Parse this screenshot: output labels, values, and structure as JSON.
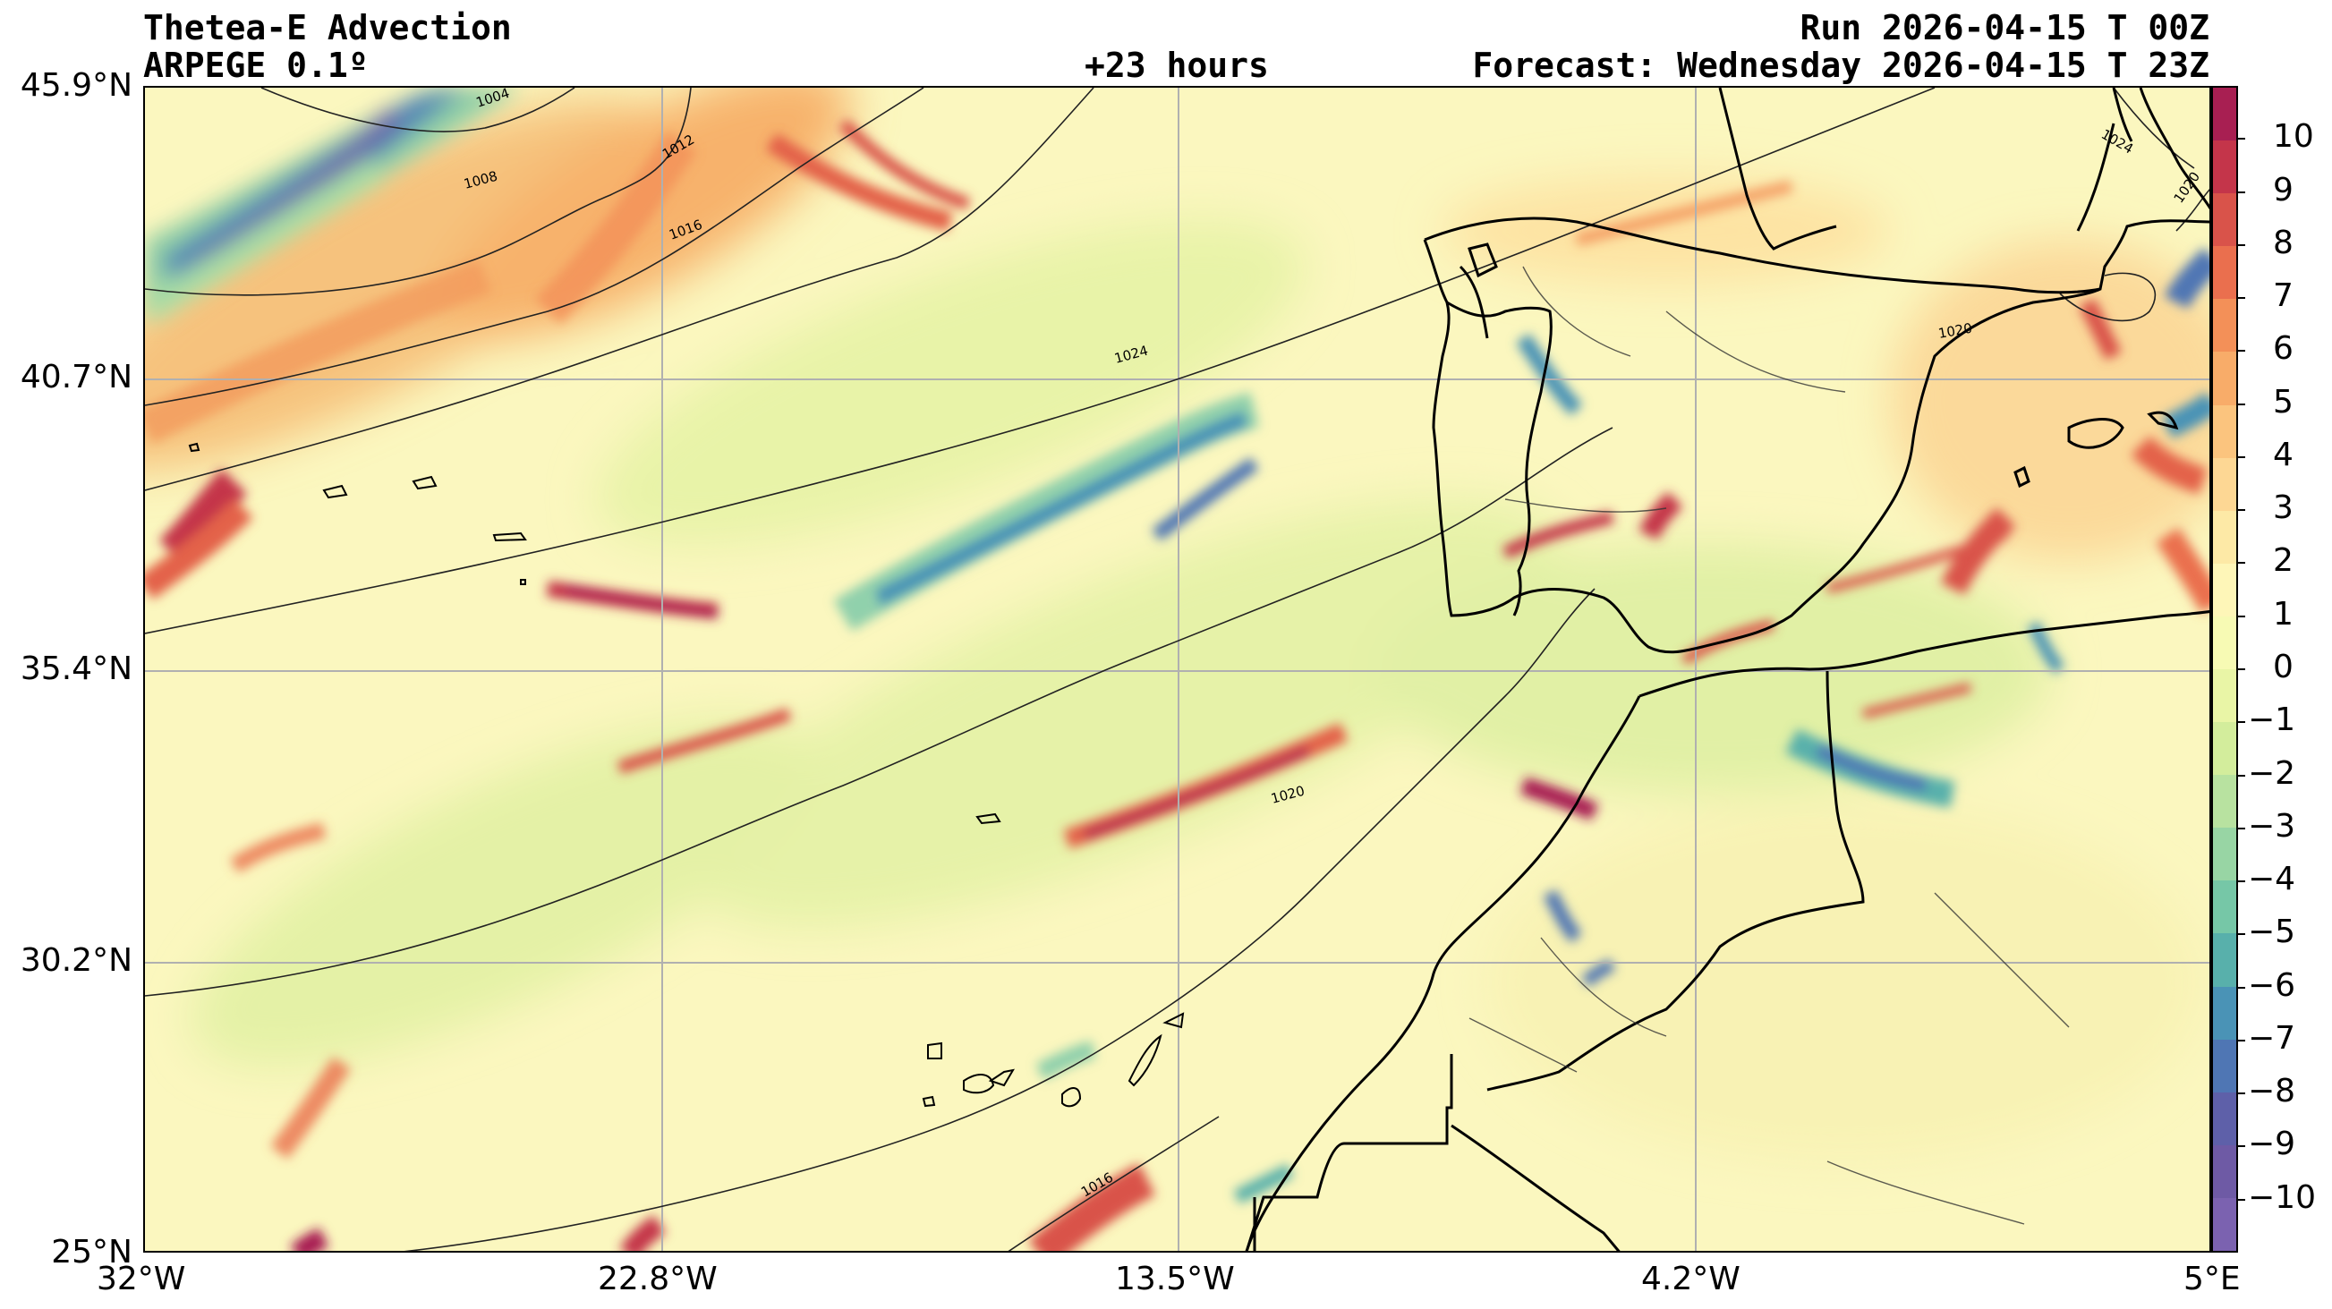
{
  "header": {
    "title_line1": "Thetea-E Advection",
    "title_line2": "ARPEGE 0.1º",
    "lead_time": "+23 hours",
    "run": "Run 2026-04-15 T 00Z",
    "forecast": "Forecast: Wednesday 2026-04-15 T 23Z"
  },
  "axes": {
    "lat_labels": [
      "45.9°N",
      "40.7°N",
      "35.4°N",
      "30.2°N",
      "25°N"
    ],
    "lon_labels": [
      "32°W",
      "22.8°W",
      "13.5°W",
      "4.2°W",
      "5°E"
    ]
  },
  "isobars": [
    "1004",
    "1008",
    "1012",
    "1016",
    "1024",
    "1020",
    "1016",
    "1024",
    "1020",
    "1020"
  ],
  "colorbar": {
    "ticks": [
      "10",
      "9",
      "8",
      "7",
      "6",
      "5",
      "4",
      "3",
      "2",
      "1",
      "0",
      "−1",
      "−2",
      "−3",
      "−4",
      "−5",
      "−6",
      "−7",
      "−8",
      "−9",
      "−10"
    ],
    "colors": [
      "#a81f52",
      "#c4354a",
      "#d9534a",
      "#ea6f4e",
      "#f39058",
      "#f8ac69",
      "#fbc47e",
      "#fdd794",
      "#fde9a6",
      "#fef6b8",
      "#f7fab4",
      "#e9f5a6",
      "#d3ed9c",
      "#b8e2a0",
      "#98d5a4",
      "#76c7a7",
      "#58b0ab",
      "#4a93b6",
      "#4f76b4",
      "#5e60a9",
      "#6e5aa5",
      "#7b62b0"
    ],
    "ylim": [
      -11,
      11
    ]
  },
  "chart_data": {
    "type": "heatmap",
    "title": "Thetea-E Advection",
    "x_ticks": [
      "32°W",
      "22.8°W",
      "13.5°W",
      "4.2°W",
      "5°E"
    ],
    "y_ticks": [
      "45.9°N",
      "40.7°N",
      "35.4°N",
      "30.2°N",
      "25°N"
    ],
    "xlim": [
      -32,
      5
    ],
    "ylim": [
      25,
      45.9
    ],
    "color_range": [
      -11,
      11
    ],
    "grid": true
  }
}
